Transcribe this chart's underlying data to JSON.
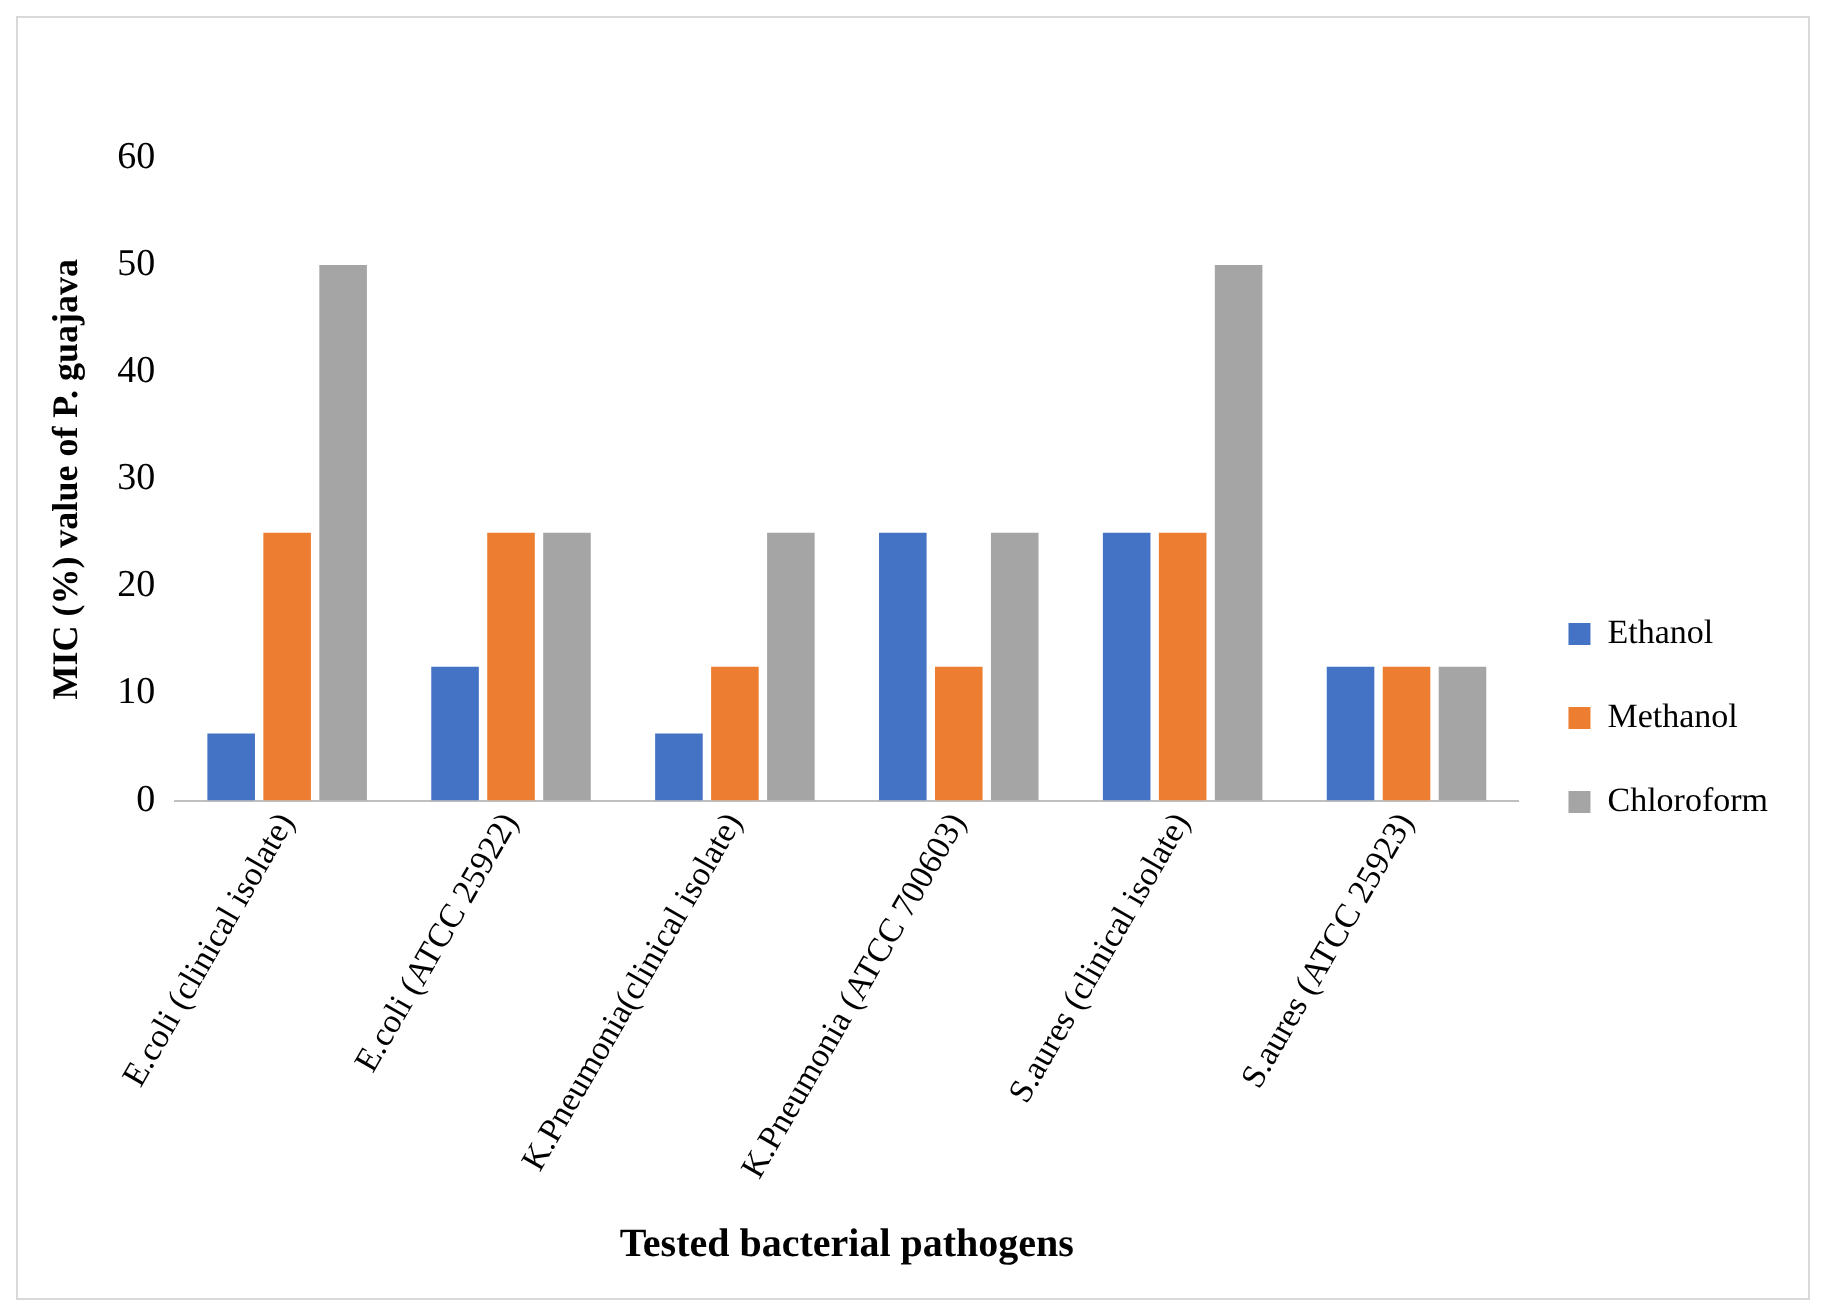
{
  "chart_data": {
    "type": "bar",
    "xlabel": "Tested bacterial pathogens",
    "ylabel": "MIC (%) value of P. guajava",
    "categories": [
      "E.coli (clinical isolate)",
      "E.coli (ATCC 25922)",
      "K.Pneumonia(clinical isolate)",
      "K.Pneumonia (ATCC 700603)",
      "S.aures (clinical isolate)",
      "S.aures (ATCC 25923)"
    ],
    "series": [
      {
        "name": "Ethanol",
        "color": "#4472c4",
        "values": [
          6.25,
          12.5,
          6.25,
          25,
          25,
          12.5
        ]
      },
      {
        "name": "Methanol",
        "color": "#ed7d31",
        "values": [
          25,
          25,
          12.5,
          12.5,
          25,
          12.5
        ]
      },
      {
        "name": "Chloroform",
        "color": "#a5a5a5",
        "values": [
          50,
          25,
          25,
          25,
          50,
          12.5
        ]
      }
    ],
    "ylim": [
      0,
      60
    ],
    "yticks": [
      0,
      10,
      20,
      30,
      40,
      50,
      60
    ],
    "grid": false,
    "legend": "right"
  }
}
